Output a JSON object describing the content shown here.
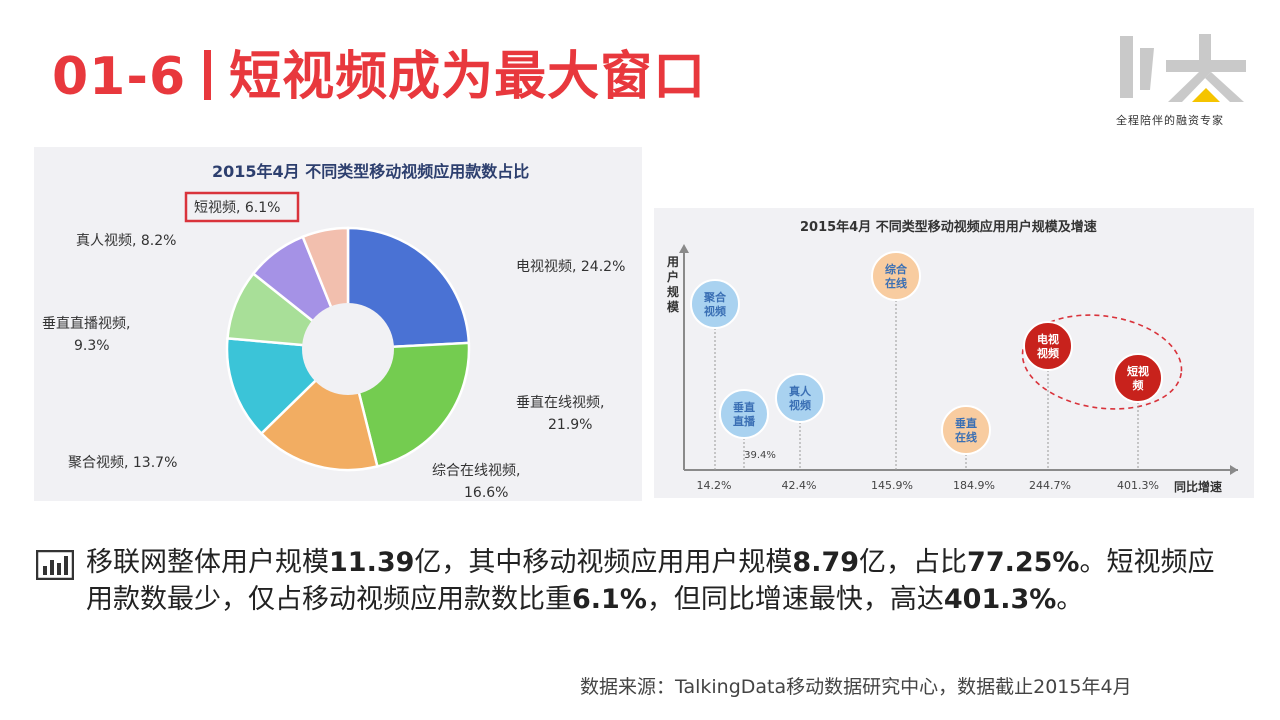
{
  "header": {
    "number": "01-6",
    "title": "短视频成为最大窗口"
  },
  "logo": {
    "tagline": "全程陪伴的融资专家",
    "color_main": "#c9c9c9",
    "color_accent": "#f5c400"
  },
  "chart_data": [
    {
      "type": "pie",
      "title": "2015年4月  不同类型移动视频应用款数占比",
      "unit": "%",
      "slices": [
        {
          "label": "电视视频, 24.2%",
          "value": 24.2,
          "color": "#4a72d4"
        },
        {
          "label": "垂直在线视频,\n21.9%",
          "value": 21.9,
          "color": "#74cc50"
        },
        {
          "label": "综合在线视频,\n16.6%",
          "value": 16.6,
          "color": "#f2ad62"
        },
        {
          "label": "聚合视频, 13.7%",
          "value": 13.7,
          "color": "#3bc4d8"
        },
        {
          "label": "垂直直播视频,\n9.3%",
          "value": 9.3,
          "color": "#a8df98"
        },
        {
          "label": "真人视频, 8.2%",
          "value": 8.2,
          "color": "#a592e6"
        },
        {
          "label": "短视频, 6.1%",
          "value": 6.1,
          "color": "#f2bfae"
        }
      ],
      "highlight": "短视频, 6.1%",
      "highlight_color": "#d9333b"
    },
    {
      "type": "scatter",
      "title": "2015年4月 不同类型移动视频应用用户规模及增速",
      "ylabel": "用户规模",
      "xlabel": "同比增速",
      "x_ticks": [
        "14.2%",
        "42.4%",
        "145.9%",
        "184.9%",
        "244.7%",
        "401.3%"
      ],
      "points": [
        {
          "label": "聚合视频",
          "x": "14.2%",
          "color": "#a9d2f0",
          "highlight": false
        },
        {
          "label": "垂直直播",
          "x": "39.4%",
          "color": "#a9d2f0",
          "highlight": false,
          "note": "39.4%"
        },
        {
          "label": "真人视频",
          "x": "42.4%",
          "color": "#a9d2f0",
          "highlight": false
        },
        {
          "label": "综合在线",
          "x": "145.9%",
          "color": "#f8cca0",
          "highlight": false
        },
        {
          "label": "垂直在线",
          "x": "184.9%",
          "color": "#f8cca0",
          "highlight": false
        },
        {
          "label": "电视视频",
          "x": "244.7%",
          "color": "#c8221c",
          "highlight": true
        },
        {
          "label": "短视频",
          "x": "401.3%",
          "color": "#c8221c",
          "highlight": true
        }
      ],
      "highlight_color": "#d9333b"
    }
  ],
  "summary": {
    "p1": "移联网整体用户规模",
    "v1": "11.39",
    "p2": "亿，其中移动视频应用用户规模",
    "v2": "8.79",
    "p3": "亿，占比",
    "v3": "77.25%",
    "p4": "。短视频应用款数最少，仅占移动视频应用款数比重",
    "v4": "6.1%",
    "p5": "，但同比增速最快，高达",
    "v5": "401.3%",
    "p6": "。"
  },
  "source": "数据来源：TalkingData移动数据研究中心，数据截止2015年4月"
}
